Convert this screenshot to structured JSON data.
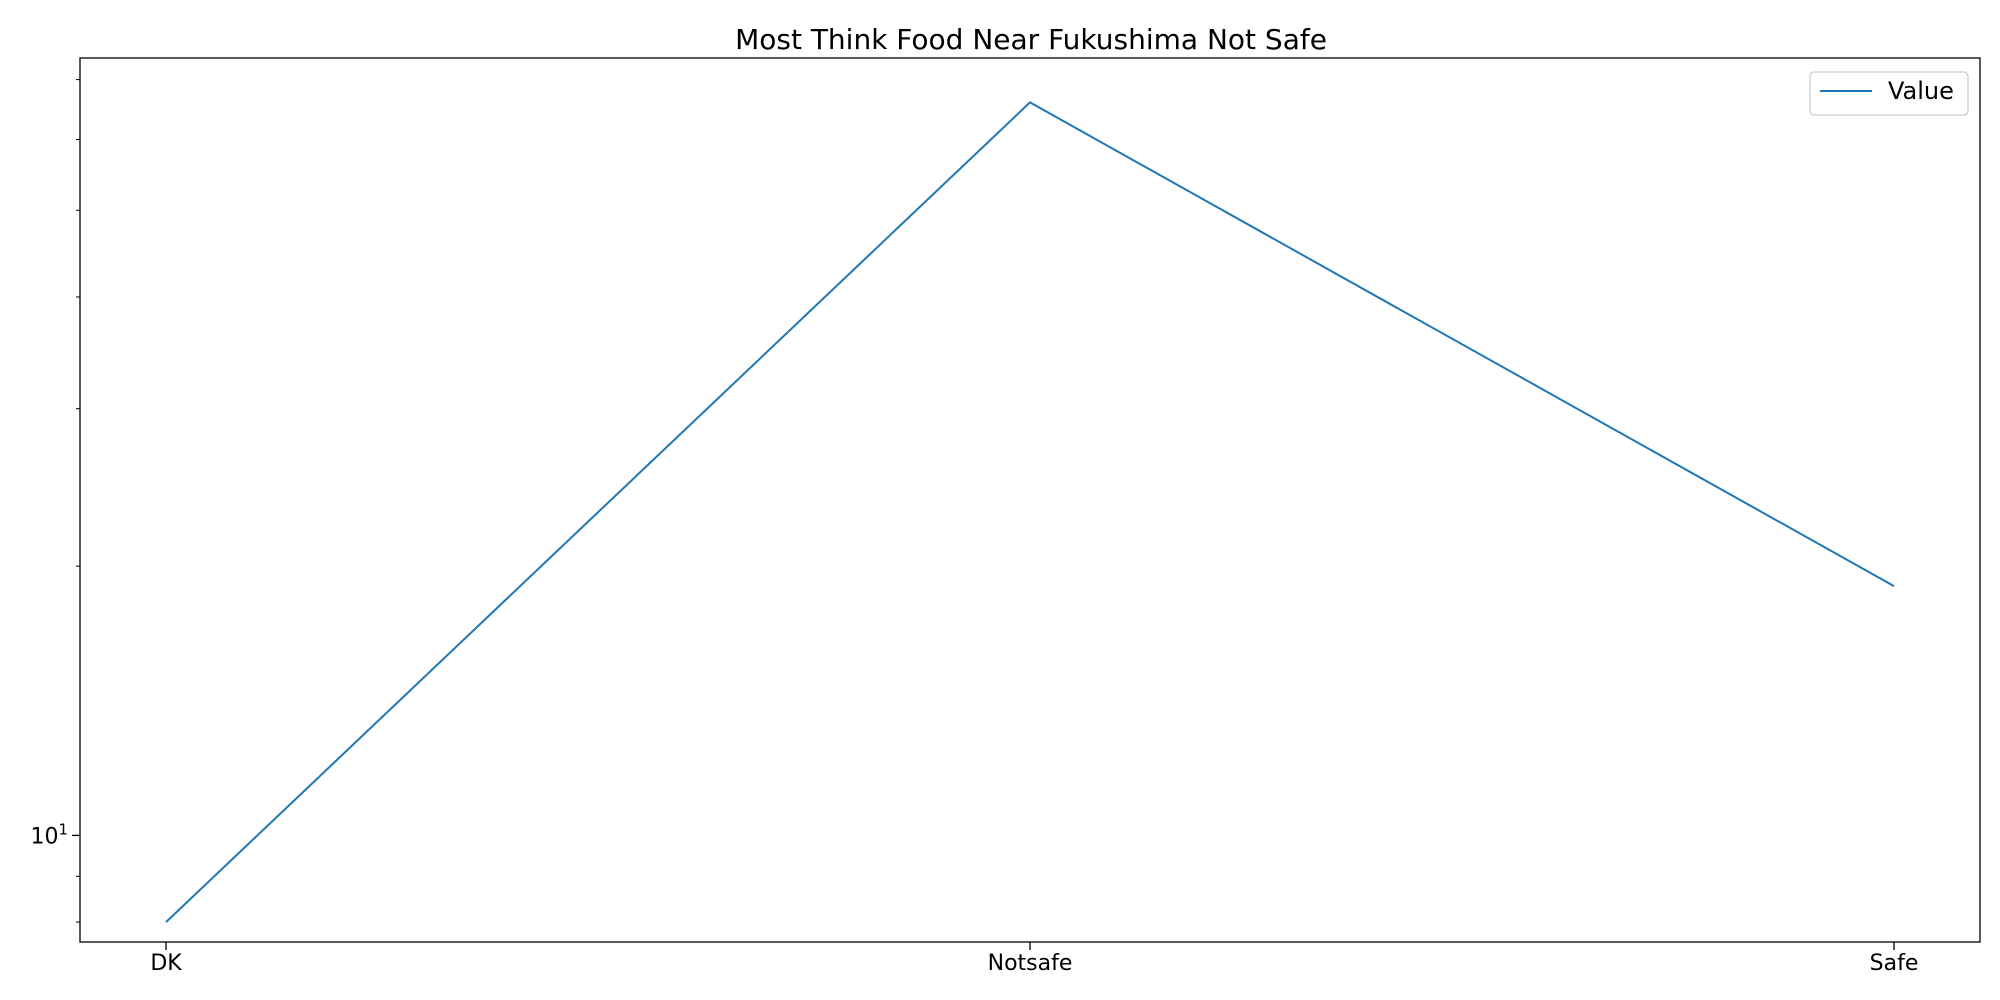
{
  "chart_data": {
    "type": "line",
    "title": "Most Think Food Near Fukushima Not Safe",
    "xlabel": "",
    "ylabel": "",
    "categories": [
      "DK",
      "Notsafe",
      "Safe"
    ],
    "series": [
      {
        "name": "Value",
        "values": [
          8,
          66,
          19
        ]
      }
    ],
    "y_scale": "log",
    "ylim": [
      7.6,
      74
    ],
    "y_major_ticks": [
      {
        "value": 10,
        "label_base": "10",
        "label_exp": "1"
      }
    ],
    "y_minor_ticks": [
      8,
      9,
      20,
      30,
      40,
      50,
      60,
      70
    ],
    "grid": false,
    "legend_position": "upper right",
    "colors": {
      "line": "#1f77b4",
      "legend_border": "#cccccc",
      "axes": "#000000"
    }
  }
}
